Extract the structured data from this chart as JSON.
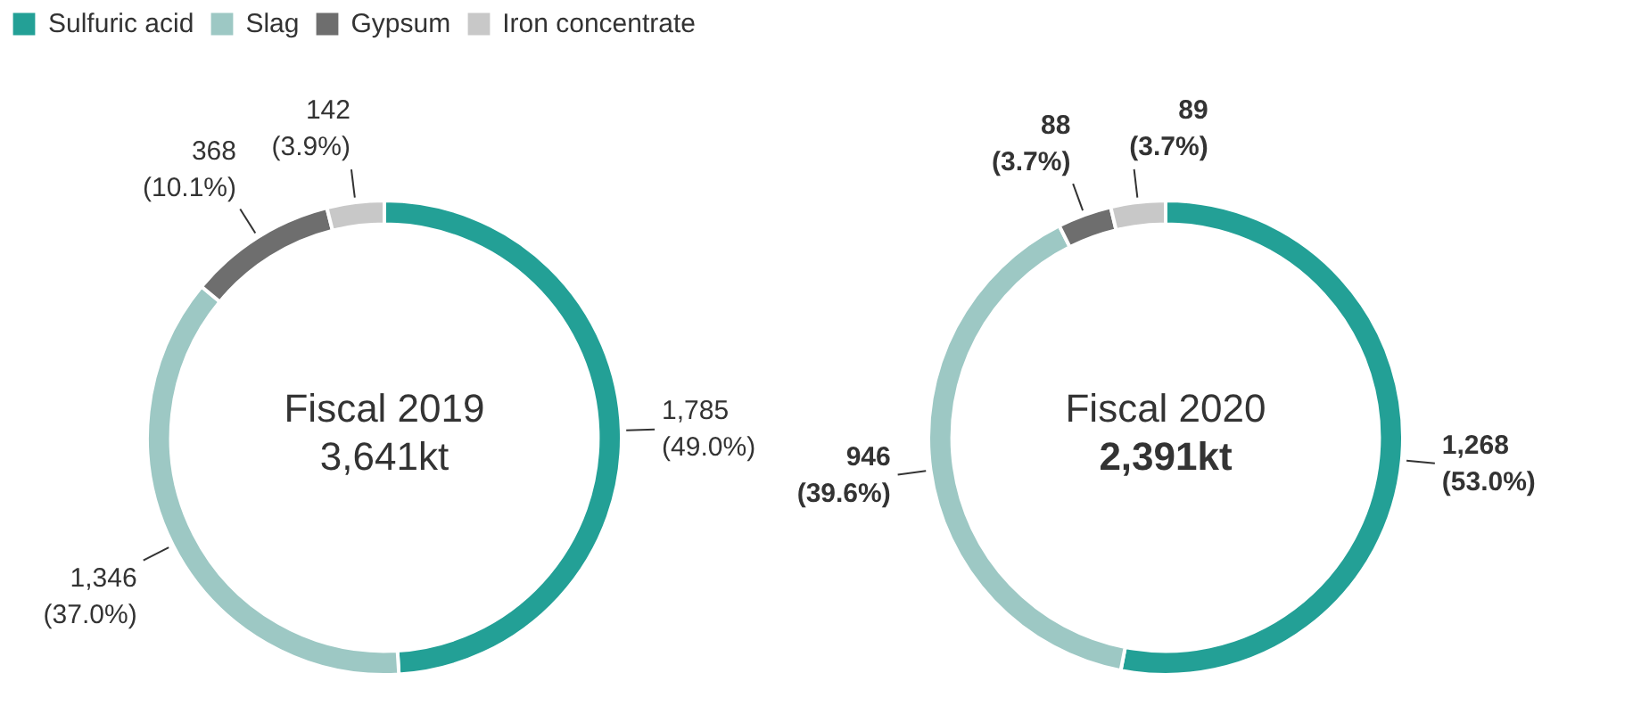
{
  "chart_data": [
    {
      "type": "donut",
      "title": "Fiscal 2019",
      "annotations": [
        "3,641kt"
      ],
      "categories": [
        "Sulfuric acid",
        "Slag",
        "Gypsum",
        "Iron concentrate"
      ],
      "values": [
        1785,
        1346,
        368,
        142
      ],
      "colors": [
        "#23a096",
        "#9dc8c4",
        "#6e6e6e",
        "#c8c8c8"
      ],
      "value_labels": [
        "1,785\n(49.0%)",
        "1,346\n(37.0%)",
        "368\n(10.1%)",
        "142\n(3.9%)"
      ],
      "legend": "top left"
    },
    {
      "type": "donut",
      "title": "Fiscal 2020",
      "annotations": [
        "2,391kt"
      ],
      "categories": [
        null,
        null,
        null,
        null
      ],
      "values": [
        1268,
        946,
        88,
        89
      ],
      "colors": [
        "#23a096",
        "#9dc8c4",
        "#6e6e6e",
        "#c8c8c8"
      ],
      "value_labels": [
        "1,268\n(53.0%)",
        "946\n(39.6%)",
        "88\n(3.7%)",
        "89\n(3.7%)"
      ]
    }
  ]
}
